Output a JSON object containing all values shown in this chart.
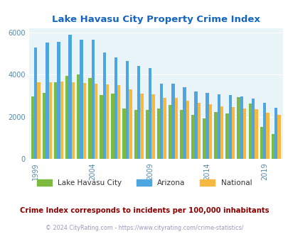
{
  "title": "Lake Havasu City Property Crime Index",
  "years": [
    1999,
    2000,
    2001,
    2002,
    2003,
    2004,
    2005,
    2006,
    2007,
    2008,
    2009,
    2010,
    2011,
    2012,
    2013,
    2014,
    2015,
    2016,
    2017,
    2018,
    2019,
    2020
  ],
  "lake_havasu": [
    2950,
    3150,
    3650,
    3950,
    4000,
    3850,
    3030,
    3100,
    2400,
    2330,
    2330,
    2380,
    2560,
    2340,
    2080,
    1920,
    2230,
    2150,
    2920,
    2640,
    1520,
    1200
  ],
  "arizona": [
    5280,
    5500,
    5550,
    5870,
    5650,
    5650,
    5050,
    4810,
    4650,
    4420,
    4300,
    3570,
    3570,
    3400,
    3200,
    3120,
    3060,
    3020,
    2960,
    2870,
    2650,
    2420
  ],
  "national": [
    3630,
    3650,
    3680,
    3650,
    3600,
    3570,
    3530,
    3490,
    3300,
    3100,
    3050,
    2910,
    2900,
    2770,
    2650,
    2600,
    2490,
    2460,
    2400,
    2360,
    2200,
    2100
  ],
  "lhc_color": "#7CBB3F",
  "az_color": "#4DA6E0",
  "nat_color": "#F5B942",
  "bg_color": "#E8F4F8",
  "title_color": "#1565C0",
  "subtitle_color": "#8B0000",
  "footer_color": "#9999BB",
  "tick_label_color": "#5588AA",
  "ylim": [
    0,
    6200
  ],
  "yticks": [
    0,
    2000,
    4000,
    6000
  ],
  "tick_years": [
    1999,
    2004,
    2009,
    2014,
    2019
  ],
  "subtitle": "Crime Index corresponds to incidents per 100,000 inhabitants",
  "footer": "© 2024 CityRating.com - https://www.cityrating.com/crime-statistics/"
}
